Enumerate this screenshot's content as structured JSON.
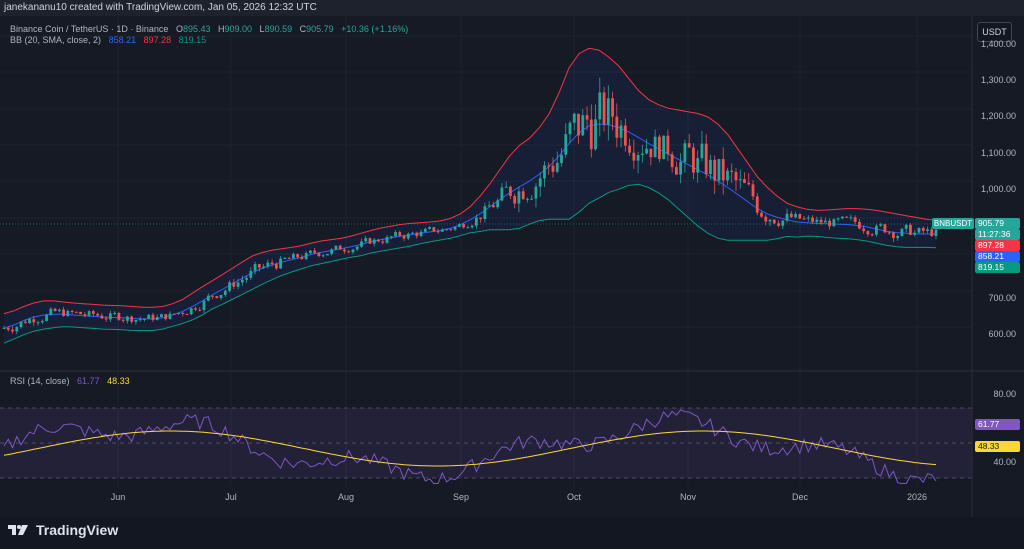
{
  "header": {
    "caption": "janekananu10 created with TradingView.com, Jan 05, 2026 12:32 UTC"
  },
  "symbol": {
    "title": "Binance Coin / TetherUS · 1D · Binance",
    "open_label": "O",
    "open": "895.43",
    "high_label": "H",
    "high": "909.00",
    "low_label": "L",
    "low": "890.59",
    "close_label": "C",
    "close": "905.79",
    "change": "+10.36 (+1.16%)",
    "ticker": "BNBUSDT",
    "countdown": "11:27:36",
    "currency": "USDT"
  },
  "bollinger": {
    "title": "BB (20, SMA, close, 2)",
    "basis": "858.21",
    "upper": "897.28",
    "lower": "819.15"
  },
  "rsi": {
    "title": "RSI (14, close)",
    "value": "61.77",
    "ma": "48.33"
  },
  "price_axis": [
    "1,400.00",
    "1,300.00",
    "1,200.00",
    "1,100.00",
    "1,000.00",
    "700.00",
    "600.00"
  ],
  "rsi_axis": [
    "80.00",
    "40.00"
  ],
  "time_axis": [
    "Jun",
    "Jul",
    "Aug",
    "Sep",
    "Oct",
    "Nov",
    "Dec",
    "2026"
  ],
  "brand": "TradingView",
  "colors": {
    "background": "#161a25",
    "up": "#26a69a",
    "down": "#ef5350",
    "basis": "#2962ff",
    "upper_band": "#f23645",
    "lower_band": "#089981",
    "rsi_line": "#7e57c2",
    "rsi_ma": "#fdd835"
  },
  "chart_data": {
    "type": "candlestick",
    "title": "Binance Coin / TetherUS · 1D · Binance",
    "ylim": [
      540,
      1420
    ],
    "x_labels": [
      "Jun",
      "Jul",
      "Aug",
      "Sep",
      "Oct",
      "Nov",
      "Dec",
      "2026"
    ],
    "series": [
      {
        "name": "BB upper",
        "values": [
          632,
          640,
          652,
          662,
          668,
          668,
          665,
          662,
          660,
          658,
          656,
          655,
          654,
          652,
          650,
          650,
          652,
          660,
          672,
          690,
          708,
          725,
          742,
          760,
          778,
          795,
          805,
          812,
          816,
          820,
          825,
          832,
          838,
          842,
          846,
          852,
          860,
          868,
          875,
          880,
          885,
          888,
          890,
          892,
          895,
          902,
          915,
          935,
          965,
          1000,
          1040,
          1080,
          1110,
          1130,
          1160,
          1200,
          1260,
          1330,
          1370,
          1385,
          1380,
          1360,
          1335,
          1300,
          1265,
          1240,
          1225,
          1215,
          1210,
          1205,
          1200,
          1190,
          1170,
          1140,
          1100,
          1060,
          1020,
          990,
          965,
          945,
          935,
          928,
          925,
          926,
          928,
          930,
          930,
          928,
          925,
          920,
          915,
          910,
          905,
          900,
          897
        ]
      },
      {
        "name": "Basis",
        "values": [
          590,
          600,
          612,
          622,
          628,
          630,
          630,
          628,
          626,
          624,
          622,
          621,
          620,
          618,
          617,
          617,
          620,
          628,
          638,
          652,
          668,
          685,
          700,
          716,
          732,
          748,
          760,
          770,
          778,
          785,
          792,
          800,
          806,
          811,
          816,
          822,
          828,
          836,
          842,
          847,
          852,
          856,
          860,
          864,
          868,
          874,
          884,
          898,
          915,
          935,
          955,
          975,
          992,
          1008,
          1028,
          1050,
          1080,
          1115,
          1145,
          1165,
          1170,
          1168,
          1160,
          1148,
          1132,
          1115,
          1100,
          1085,
          1070,
          1055,
          1040,
          1025,
          1008,
          990,
          970,
          950,
          930,
          915,
          905,
          898,
          892,
          890,
          888,
          887,
          886,
          885,
          882,
          878,
          872,
          866,
          862,
          860,
          858,
          858,
          858
        ]
      },
      {
        "name": "BB lower",
        "values": [
          548,
          560,
          572,
          582,
          588,
          592,
          595,
          594,
          592,
          590,
          588,
          587,
          586,
          584,
          584,
          584,
          588,
          596,
          604,
          614,
          628,
          645,
          658,
          672,
          686,
          700,
          715,
          728,
          740,
          750,
          759,
          768,
          774,
          780,
          786,
          792,
          796,
          804,
          809,
          814,
          819,
          824,
          830,
          836,
          841,
          846,
          853,
          861,
          865,
          870,
          870,
          870,
          874,
          886,
          896,
          900,
          900,
          900,
          920,
          945,
          960,
          976,
          985,
          996,
          999,
          990,
          975,
          955,
          930,
          905,
          880,
          860,
          846,
          840,
          840,
          840,
          840,
          840,
          845,
          851,
          849,
          852,
          851,
          848,
          846,
          845,
          842,
          838,
          832,
          826,
          822,
          820,
          820,
          820,
          819
        ]
      }
    ]
  }
}
